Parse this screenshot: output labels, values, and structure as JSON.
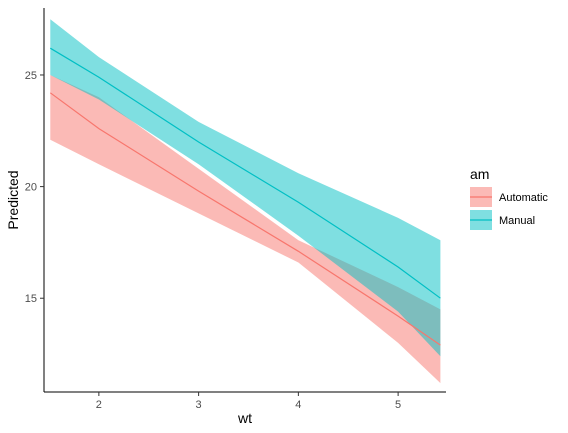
{
  "chart_data": {
    "type": "line",
    "xlabel": "wt",
    "ylabel": "Predicted",
    "xlim": [
      1.45,
      5.48
    ],
    "ylim": [
      10.8,
      28.0
    ],
    "x_ticks": [
      2,
      3,
      4,
      5
    ],
    "y_ticks": [
      15,
      20,
      25
    ],
    "grid": false,
    "legend": {
      "title": "am",
      "position": "right"
    },
    "series": [
      {
        "name": "Automatic",
        "color": "#F8766D",
        "x": [
          1.513,
          2,
          3,
          4,
          5,
          5.424
        ],
        "y": [
          24.2,
          22.6,
          19.8,
          17.1,
          14.2,
          12.9
        ],
        "lower": [
          22.1,
          21.0,
          18.8,
          16.6,
          13.0,
          11.2
        ],
        "upper": [
          25.0,
          24.0,
          20.8,
          17.6,
          15.5,
          14.5
        ]
      },
      {
        "name": "Manual",
        "color": "#00BFC4",
        "x": [
          1.513,
          2,
          3,
          4,
          5,
          5.424
        ],
        "y": [
          26.2,
          24.9,
          22.0,
          19.3,
          16.4,
          15.0
        ],
        "lower": [
          25.0,
          23.9,
          21.0,
          17.8,
          14.4,
          12.4
        ],
        "upper": [
          27.5,
          25.8,
          22.9,
          20.6,
          18.6,
          17.6
        ]
      }
    ]
  }
}
